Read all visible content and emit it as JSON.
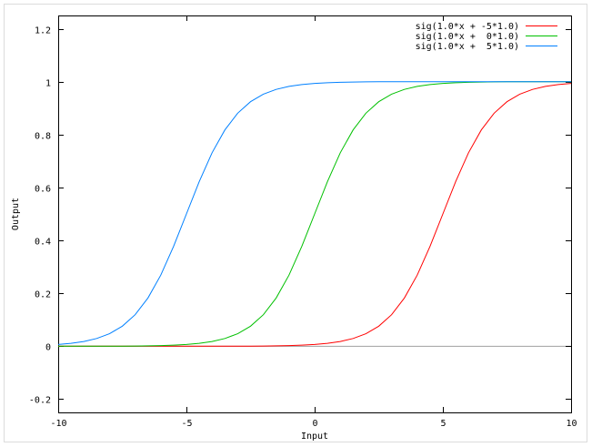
{
  "chart_data": {
    "type": "line",
    "title": "",
    "xlabel": "Input",
    "ylabel": "Output",
    "xlim": [
      -10,
      10
    ],
    "ylim": [
      -0.25,
      1.25
    ],
    "xticks": [
      "-10",
      "-5",
      "0",
      "5",
      "10"
    ],
    "xtick_values": [
      -10,
      -5,
      0,
      5,
      10
    ],
    "yticks": [
      "-0.2",
      "0",
      "0.2",
      "0.4",
      "0.6",
      "0.8",
      "1",
      "1.2"
    ],
    "ytick_values": [
      -0.2,
      0,
      0.2,
      0.4,
      0.6,
      0.8,
      1,
      1.2
    ],
    "grid": false,
    "legend_placement": "top-right",
    "x": [
      -10,
      -9.5,
      -9,
      -8.5,
      -8,
      -7.5,
      -7,
      -6.5,
      -6,
      -5.5,
      -5,
      -4.5,
      -4,
      -3.5,
      -3,
      -2.5,
      -2,
      -1.5,
      -1,
      -0.5,
      0,
      0.5,
      1,
      1.5,
      2,
      2.5,
      3,
      3.5,
      4,
      4.5,
      5,
      5.5,
      6,
      6.5,
      7,
      7.5,
      8,
      8.5,
      9,
      9.5,
      10
    ],
    "series": [
      {
        "name": "sig(1.0*x + -5*1.0)",
        "color": "#ff0000",
        "values": [
          0,
          0,
          0,
          0,
          0,
          0,
          0,
          0,
          0,
          0,
          0,
          0.0001,
          0.0001,
          0.0002,
          0.0003,
          0.0006,
          0.0009,
          0.0015,
          0.0025,
          0.0041,
          0.0067,
          0.011,
          0.018,
          0.0293,
          0.0474,
          0.0759,
          0.1192,
          0.1824,
          0.2689,
          0.3775,
          0.5,
          0.6225,
          0.7311,
          0.8176,
          0.8808,
          0.9241,
          0.9526,
          0.9707,
          0.982,
          0.989,
          0.9933
        ]
      },
      {
        "name": "sig(1.0*x +  0*1.0)",
        "color": "#00c000",
        "values": [
          0,
          0.0001,
          0.0001,
          0.0002,
          0.0003,
          0.0006,
          0.0009,
          0.0015,
          0.0025,
          0.0041,
          0.0067,
          0.011,
          0.018,
          0.0293,
          0.0474,
          0.0759,
          0.1192,
          0.1824,
          0.2689,
          0.3775,
          0.5,
          0.6225,
          0.7311,
          0.8176,
          0.8808,
          0.9241,
          0.9526,
          0.9707,
          0.982,
          0.989,
          0.9933,
          0.9959,
          0.9975,
          0.9985,
          0.9991,
          0.9994,
          0.9997,
          0.9998,
          0.9999,
          0.9999,
          1
        ]
      },
      {
        "name": "sig(1.0*x +  5*1.0)",
        "color": "#0080ff",
        "values": [
          0.0067,
          0.011,
          0.018,
          0.0293,
          0.0474,
          0.0759,
          0.1192,
          0.1824,
          0.2689,
          0.3775,
          0.5,
          0.6225,
          0.7311,
          0.8176,
          0.8808,
          0.9241,
          0.9526,
          0.9707,
          0.982,
          0.989,
          0.9933,
          0.9959,
          0.9975,
          0.9985,
          0.9991,
          0.9994,
          0.9997,
          0.9998,
          0.9999,
          0.9999,
          1,
          1,
          1,
          1,
          1,
          1,
          1,
          1,
          1,
          1,
          1
        ]
      }
    ]
  }
}
